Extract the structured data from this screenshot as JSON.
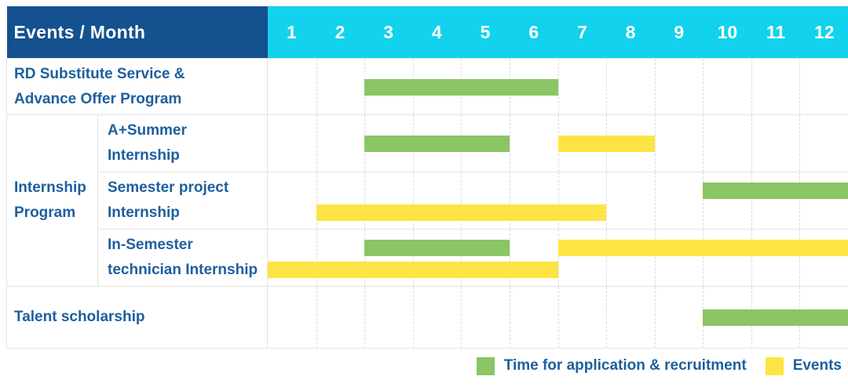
{
  "header": {
    "label": "Events / Month",
    "months": [
      "1",
      "2",
      "3",
      "4",
      "5",
      "6",
      "7",
      "8",
      "9",
      "10",
      "11",
      "12"
    ]
  },
  "colors": {
    "header_bg": "#15518E",
    "months_bg": "#12D2EE",
    "green": "#8BC566",
    "yellow": "#FDE444",
    "label_text": "#1D5F9E",
    "grid_line": "#DCDCDC",
    "cell_border": "#E4E4E4"
  },
  "chart_data": {
    "type": "gantt",
    "x_unit": "month",
    "x_range": [
      1,
      12
    ],
    "grid": "dashed-vertical-per-month",
    "bar_types": {
      "application": "Time for application & recruitment",
      "event": "Events"
    },
    "rows": [
      {
        "group": null,
        "label": "RD Substitute Service &\nAdvance Offer Program",
        "bars": [
          {
            "type": "application",
            "start": 3,
            "end": 6,
            "lane": "single"
          }
        ]
      },
      {
        "group": "Internship Program",
        "label": "A+Summer\nInternship",
        "bars": [
          {
            "type": "application",
            "start": 3,
            "end": 5,
            "lane": "single"
          },
          {
            "type": "event",
            "start": 7,
            "end": 8,
            "lane": "single"
          }
        ]
      },
      {
        "group": "Internship Program",
        "label": "Semester project\nInternship",
        "bars": [
          {
            "type": "application",
            "start": 10,
            "end": 12,
            "lane": "upper"
          },
          {
            "type": "event",
            "start": 2,
            "end": 7,
            "lane": "lower"
          }
        ]
      },
      {
        "group": "Internship Program",
        "label": "In-Semester\ntechnician Internship",
        "bars": [
          {
            "type": "application",
            "start": 3,
            "end": 5,
            "lane": "upper"
          },
          {
            "type": "event",
            "start": 7,
            "end": 12,
            "lane": "upper"
          },
          {
            "type": "event",
            "start": 1,
            "end": 6,
            "lane": "lower"
          }
        ]
      },
      {
        "group": null,
        "label": "Talent scholarship",
        "bars": [
          {
            "type": "application",
            "start": 10,
            "end": 12,
            "lane": "single"
          }
        ]
      }
    ]
  },
  "legend": {
    "items": [
      {
        "label": "Time for application & recruitment",
        "type": "application"
      },
      {
        "label": "Events",
        "type": "event"
      }
    ]
  }
}
